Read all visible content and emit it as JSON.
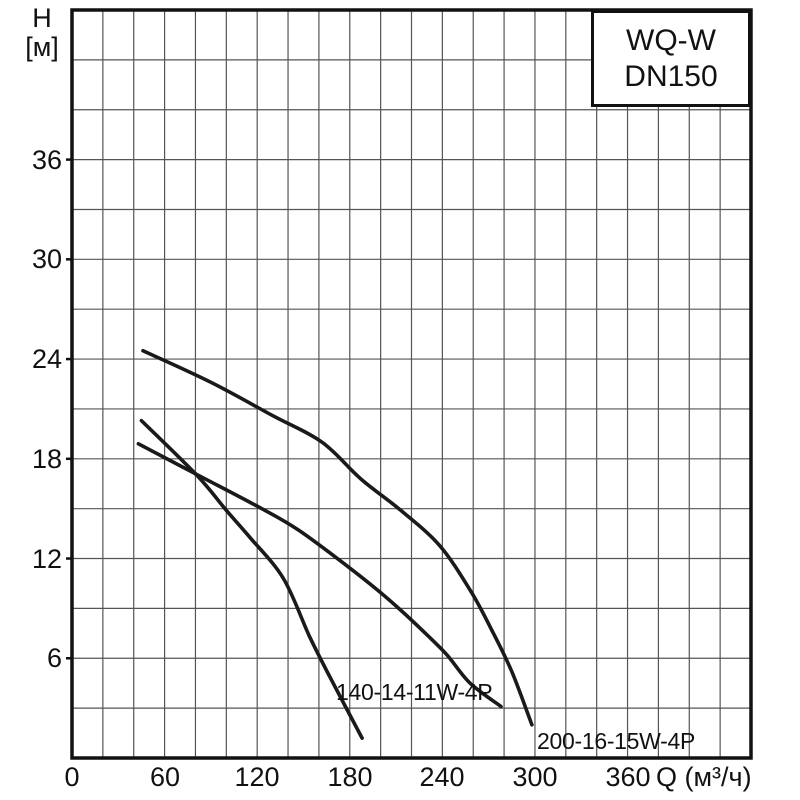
{
  "title_box": {
    "line1": "WQ-W",
    "line2": "DN150"
  },
  "chart_data": {
    "type": "line",
    "title": "WQ-W DN150",
    "xlabel": "Q (м³/ч)",
    "ylabel": "H",
    "ylabel_units": "[м]",
    "xlim": [
      0,
      440
    ],
    "ylim": [
      0,
      45
    ],
    "x_ticks": [
      0,
      60,
      120,
      180,
      240,
      300,
      360
    ],
    "y_ticks": [
      6,
      12,
      18,
      24,
      30,
      36
    ],
    "x_minor_step": 20,
    "y_minor_step": 3,
    "grid": true,
    "legend_position": "labels-on-plot",
    "series": [
      {
        "name": "200-16-15W-4P",
        "points": [
          [
            46,
            24.5
          ],
          [
            90,
            22.6
          ],
          [
            130,
            20.6
          ],
          [
            162,
            19.0
          ],
          [
            187,
            16.8
          ],
          [
            213,
            14.9
          ],
          [
            238,
            12.8
          ],
          [
            258,
            10.1
          ],
          [
            272,
            7.7
          ],
          [
            285,
            5.2
          ],
          [
            298,
            2.0
          ]
        ]
      },
      {
        "name": "140-14-11W-4P",
        "points": [
          [
            43,
            18.9
          ],
          [
            80,
            17.1
          ],
          [
            123,
            15.0
          ],
          [
            147,
            13.7
          ],
          [
            179,
            11.5
          ],
          [
            198,
            10.1
          ],
          [
            213,
            8.9
          ],
          [
            229,
            7.5
          ],
          [
            243,
            6.2
          ],
          [
            258,
            4.5
          ],
          [
            278,
            3.1
          ]
        ]
      },
      {
        "name": "",
        "points": [
          [
            45,
            20.3
          ],
          [
            81,
            17.0
          ],
          [
            100,
            14.9
          ],
          [
            115,
            13.3
          ],
          [
            137,
            10.8
          ],
          [
            154,
            7.3
          ],
          [
            167,
            4.9
          ],
          [
            188,
            1.2
          ]
        ]
      }
    ],
    "colors": {
      "background": "#ffffff",
      "border": "#111111",
      "grid": "#555555",
      "curve": "#1a1a1a",
      "text": "#111111"
    }
  }
}
